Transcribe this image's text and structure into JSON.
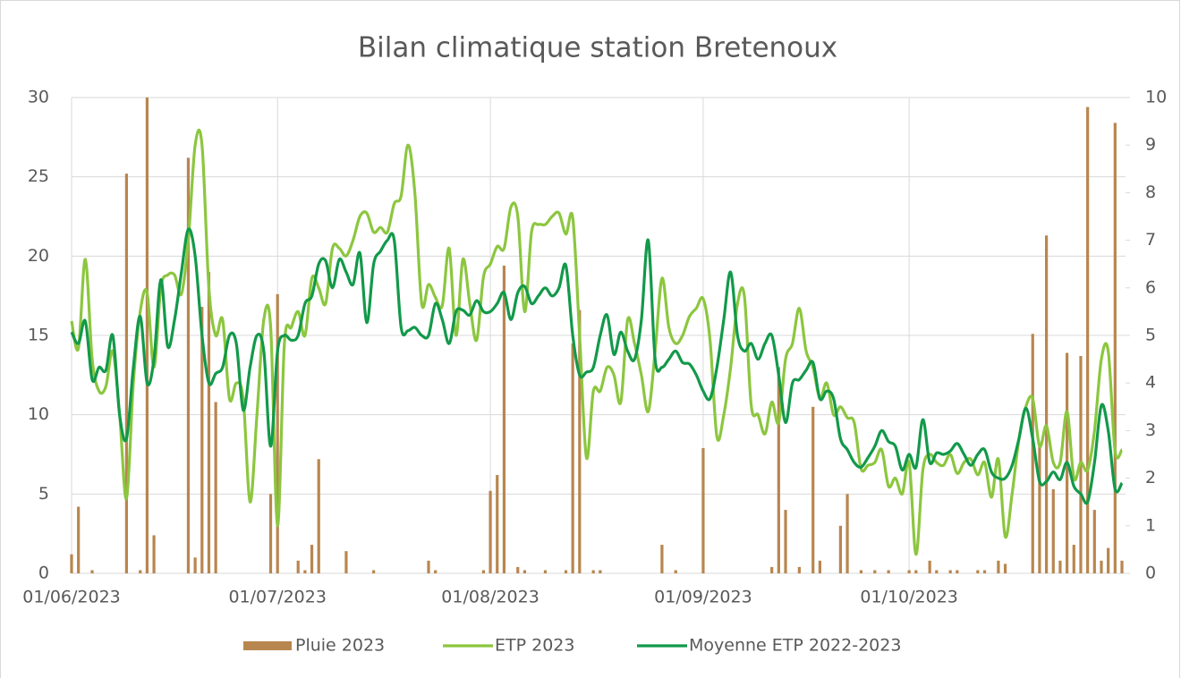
{
  "chart_data": {
    "type": "bar+line",
    "title": "Bilan climatique station Bretenoux",
    "x": [
      "2023-06-01",
      "2023-06-02",
      "2023-06-03",
      "2023-06-04",
      "2023-06-05",
      "2023-06-06",
      "2023-06-07",
      "2023-06-08",
      "2023-06-09",
      "2023-06-10",
      "2023-06-11",
      "2023-06-12",
      "2023-06-13",
      "2023-06-14",
      "2023-06-15",
      "2023-06-16",
      "2023-06-17",
      "2023-06-18",
      "2023-06-19",
      "2023-06-20",
      "2023-06-21",
      "2023-06-22",
      "2023-06-23",
      "2023-06-24",
      "2023-06-25",
      "2023-06-26",
      "2023-06-27",
      "2023-06-28",
      "2023-06-29",
      "2023-06-30",
      "2023-07-01",
      "2023-07-02",
      "2023-07-03",
      "2023-07-04",
      "2023-07-05",
      "2023-07-06",
      "2023-07-07",
      "2023-07-08",
      "2023-07-09",
      "2023-07-10",
      "2023-07-11",
      "2023-07-12",
      "2023-07-13",
      "2023-07-14",
      "2023-07-15",
      "2023-07-16",
      "2023-07-17",
      "2023-07-18",
      "2023-07-19",
      "2023-07-20",
      "2023-07-21",
      "2023-07-22",
      "2023-07-23",
      "2023-07-24",
      "2023-07-25",
      "2023-07-26",
      "2023-07-27",
      "2023-07-28",
      "2023-07-29",
      "2023-07-30",
      "2023-07-31",
      "2023-08-01",
      "2023-08-02",
      "2023-08-03",
      "2023-08-04",
      "2023-08-05",
      "2023-08-06",
      "2023-08-07",
      "2023-08-08",
      "2023-08-09",
      "2023-08-10",
      "2023-08-11",
      "2023-08-12",
      "2023-08-13",
      "2023-08-14",
      "2023-08-15",
      "2023-08-16",
      "2023-08-17",
      "2023-08-18",
      "2023-08-19",
      "2023-08-20",
      "2023-08-21",
      "2023-08-22",
      "2023-08-23",
      "2023-08-24",
      "2023-08-25",
      "2023-08-26",
      "2023-08-27",
      "2023-08-28",
      "2023-08-29",
      "2023-08-30",
      "2023-08-31",
      "2023-09-01",
      "2023-09-02",
      "2023-09-03",
      "2023-09-04",
      "2023-09-05",
      "2023-09-06",
      "2023-09-07",
      "2023-09-08",
      "2023-09-09",
      "2023-09-10",
      "2023-09-11",
      "2023-09-12",
      "2023-09-13",
      "2023-09-14",
      "2023-09-15",
      "2023-09-16",
      "2023-09-17",
      "2023-09-18",
      "2023-09-19",
      "2023-09-20",
      "2023-09-21",
      "2023-09-22",
      "2023-09-23",
      "2023-09-24",
      "2023-09-25",
      "2023-09-26",
      "2023-09-27",
      "2023-09-28",
      "2023-09-29",
      "2023-09-30",
      "2023-10-01",
      "2023-10-02",
      "2023-10-03",
      "2023-10-04",
      "2023-10-05",
      "2023-10-06",
      "2023-10-07",
      "2023-10-08",
      "2023-10-09",
      "2023-10-10",
      "2023-10-11",
      "2023-10-12",
      "2023-10-13",
      "2023-10-14",
      "2023-10-15",
      "2023-10-16",
      "2023-10-17",
      "2023-10-18",
      "2023-10-19",
      "2023-10-20",
      "2023-10-21",
      "2023-10-22",
      "2023-10-23",
      "2023-10-24",
      "2023-10-25",
      "2023-10-26",
      "2023-10-27",
      "2023-10-28",
      "2023-10-29",
      "2023-10-30",
      "2023-10-31",
      "2023-11-01"
    ],
    "series": [
      {
        "name": "Pluie 2023",
        "kind": "bar",
        "color": "#b8864f",
        "values": [
          1.2,
          4.2,
          0,
          0.2,
          0,
          0,
          0,
          0,
          25.2,
          0,
          0.2,
          30,
          2.4,
          0,
          0,
          0,
          0,
          26.2,
          1,
          16.8,
          19,
          10.8,
          0,
          0,
          0,
          0,
          0,
          0,
          0,
          5,
          17.6,
          0,
          0,
          0.8,
          0.2,
          1.8,
          7.2,
          0,
          0,
          0,
          1.4,
          0,
          0,
          0,
          0.2,
          0,
          0,
          0,
          0,
          0,
          0,
          0,
          0.8,
          0.2,
          0,
          0,
          0,
          0,
          0,
          0,
          0.2,
          5.2,
          6.2,
          19.4,
          0,
          0.4,
          0.2,
          0,
          0,
          0.2,
          0,
          0,
          0.2,
          14.5,
          16.6,
          0,
          0.2,
          0.2,
          0,
          0,
          0,
          0,
          0,
          0,
          0,
          0,
          1.8,
          0,
          0.2,
          0,
          0,
          0,
          7.9,
          0,
          0,
          0,
          0,
          0,
          0,
          0,
          0,
          0,
          0.4,
          13,
          4,
          0,
          0.4,
          0,
          10.5,
          0.8,
          0,
          0,
          3,
          5,
          0,
          0.2,
          0,
          0.2,
          0,
          0.2,
          0,
          0,
          0.2,
          0.2,
          0,
          0.8,
          0.2,
          0,
          0.2,
          0.2,
          0,
          0,
          0.2,
          0.2,
          0,
          0.8,
          0.6,
          0,
          0,
          0,
          15.1,
          8,
          21.3,
          5.3,
          0.8,
          13.9,
          1.8,
          13.7,
          29.4,
          4,
          0.8,
          1.6,
          28.4,
          0.8
        ]
      },
      {
        "name": "ETP 2023",
        "kind": "line",
        "axis": "y2",
        "color": "#8cc63f",
        "values": [
          5.3,
          4.73,
          6.6,
          4.5,
          3.83,
          3.93,
          4.67,
          3.33,
          1.57,
          4,
          5.5,
          5.9,
          4.33,
          6,
          6.27,
          6.27,
          5.87,
          7,
          9,
          9,
          6,
          5,
          5.33,
          3.67,
          4,
          3.67,
          1.5,
          3.33,
          5.33,
          5.17,
          1,
          4.83,
          5.17,
          5.5,
          5,
          6.2,
          6,
          5.67,
          6.83,
          6.83,
          6.67,
          7,
          7.5,
          7.57,
          7.17,
          7.27,
          7.17,
          7.77,
          7.93,
          9,
          8,
          5.67,
          6.07,
          5.8,
          5.63,
          6.83,
          5,
          6.6,
          5.67,
          4.9,
          6.23,
          6.5,
          6.87,
          6.83,
          7.7,
          7.5,
          5.5,
          7.17,
          7.33,
          7.33,
          7.5,
          7.57,
          7.13,
          7.47,
          5,
          2.43,
          3.83,
          3.83,
          4.33,
          4.17,
          3.6,
          5.33,
          4.83,
          4.17,
          3.4,
          4.67,
          6.2,
          5.17,
          4.83,
          5,
          5.4,
          5.57,
          5.77,
          4.9,
          2.87,
          3.33,
          4.33,
          5.67,
          5.83,
          3.53,
          3.33,
          2.93,
          3.6,
          3.17,
          4.5,
          4.83,
          5.57,
          4.67,
          4.33,
          3.67,
          4,
          3.33,
          3.5,
          3.27,
          3.17,
          2.2,
          2.27,
          2.33,
          2.6,
          1.83,
          2,
          1.67,
          2.33,
          0.4,
          2.17,
          2.5,
          2.33,
          2.27,
          2.5,
          2.1,
          2.33,
          2.4,
          2.07,
          2.33,
          1.6,
          2.4,
          0.77,
          1.67,
          2.83,
          3.5,
          3.67,
          2.67,
          3.1,
          2.33,
          2.33,
          3.4,
          2,
          2.33,
          2.17,
          3,
          4.5,
          4.67,
          2.57,
          2.6
        ]
      },
      {
        "name": "Moyenne ETP 2022-2023",
        "kind": "line",
        "axis": "y2",
        "color": "#12994a",
        "values": [
          5.07,
          4.83,
          5.3,
          4.07,
          4.33,
          4.27,
          5,
          3.33,
          2.83,
          4.33,
          5.4,
          4,
          4.5,
          6.17,
          4.77,
          5.33,
          6.33,
          7.23,
          6.67,
          5,
          4,
          4.2,
          4.33,
          5,
          4.83,
          3.43,
          4.33,
          5,
          4.67,
          2.67,
          4.67,
          5,
          4.9,
          5,
          5.67,
          5.83,
          6.5,
          6.57,
          6,
          6.6,
          6.33,
          6.07,
          6.73,
          5.27,
          6.5,
          6.77,
          7,
          7,
          5.17,
          5.1,
          5.17,
          5,
          5,
          5.67,
          5.33,
          4.83,
          5.5,
          5.53,
          5.43,
          5.73,
          5.5,
          5.5,
          5.67,
          5.9,
          5.33,
          5.9,
          6.03,
          5.67,
          5.83,
          6,
          5.83,
          6,
          6.47,
          5,
          4.17,
          4.23,
          4.33,
          5,
          5.43,
          4.6,
          5.07,
          4.67,
          4.5,
          5.33,
          7,
          4.5,
          4.33,
          4.5,
          4.67,
          4.43,
          4.4,
          4.17,
          3.83,
          3.67,
          4.33,
          5.33,
          6.33,
          5,
          4.67,
          4.83,
          4.5,
          4.83,
          5,
          4.17,
          3.17,
          4,
          4.07,
          4.27,
          4.43,
          3.67,
          3.83,
          3.67,
          2.83,
          2.6,
          2.33,
          2.23,
          2.43,
          2.67,
          3,
          2.77,
          2.67,
          2.17,
          2.5,
          2.23,
          3.23,
          2.33,
          2.53,
          2.5,
          2.57,
          2.73,
          2.5,
          2.27,
          2.5,
          2.6,
          2.13,
          2,
          2,
          2.27,
          2.83,
          3.47,
          2.83,
          1.93,
          1.93,
          2.13,
          1.97,
          2.33,
          1.83,
          1.67,
          1.5,
          2.33,
          3.53,
          3,
          1.77,
          1.9
        ]
      }
    ],
    "xlim": [
      "2023-06-01",
      "2023-11-01"
    ],
    "xticks": [
      {
        "value": "2023-06-01",
        "label": "01/06/2023"
      },
      {
        "value": "2023-07-01",
        "label": "01/07/2023"
      },
      {
        "value": "2023-08-01",
        "label": "01/08/2023"
      },
      {
        "value": "2023-09-01",
        "label": "01/09/2023"
      },
      {
        "value": "2023-10-01",
        "label": "01/10/2023"
      }
    ],
    "ylim": [
      0,
      30
    ],
    "yticks": [
      0,
      5,
      10,
      15,
      20,
      25,
      30
    ],
    "y2lim": [
      0,
      10
    ],
    "y2ticks": [
      0,
      1,
      2,
      3,
      4,
      5,
      6,
      7,
      8,
      9,
      10
    ],
    "grid": true,
    "legend": "bottom"
  }
}
